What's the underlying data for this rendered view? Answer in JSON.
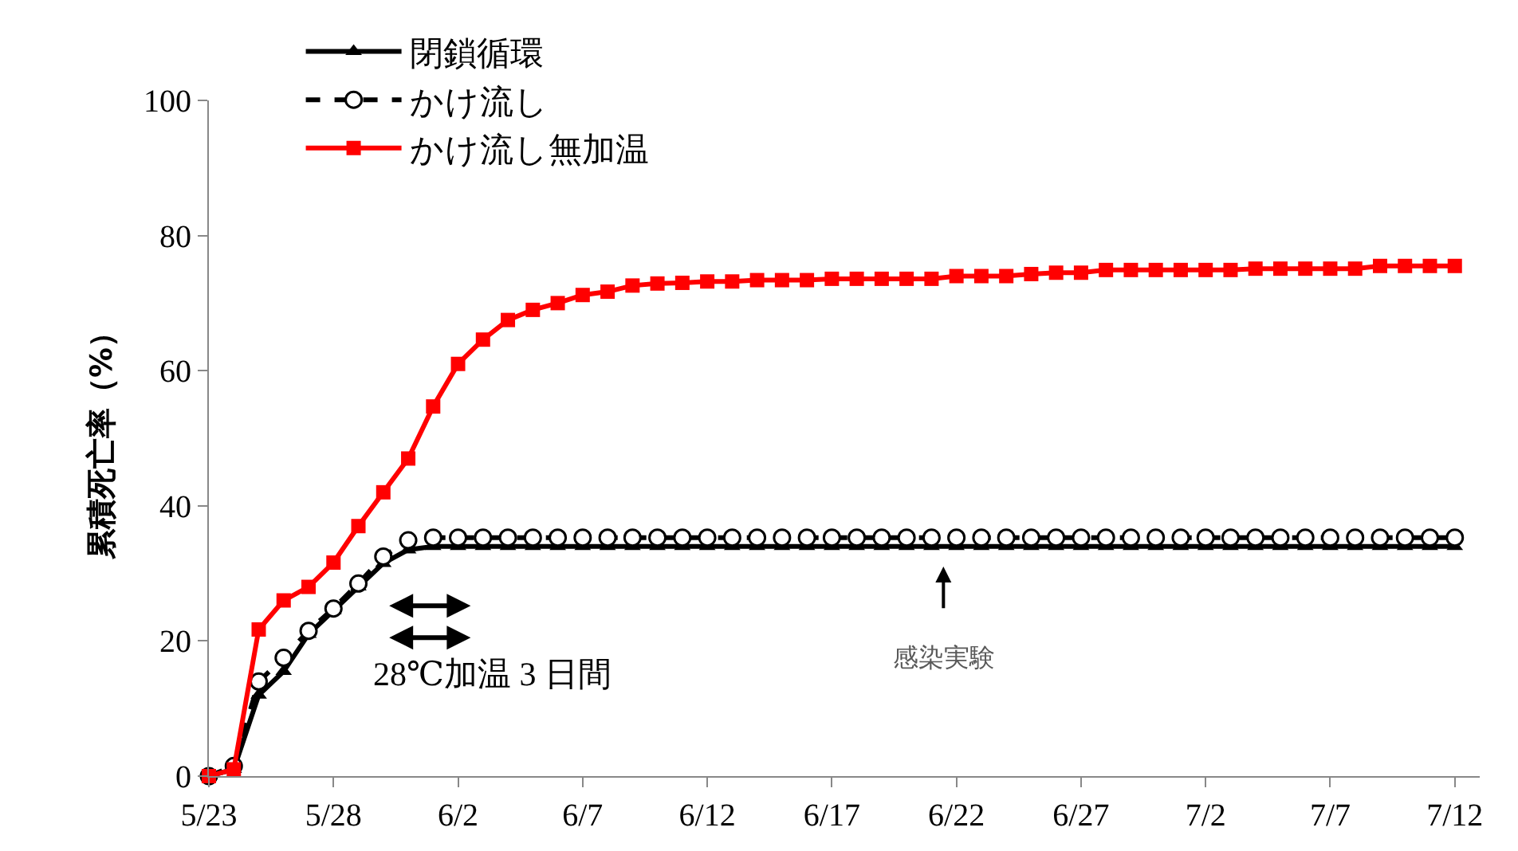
{
  "chart_data": {
    "type": "line",
    "ylabel": "累積死亡率（%）",
    "x": [
      "--05-23",
      "--05-24",
      "--05-25",
      "--05-26",
      "--05-27",
      "--05-28",
      "--05-29",
      "--05-30",
      "--05-31",
      "--06-01",
      "--06-02",
      "--06-03",
      "--06-04",
      "--06-05",
      "--06-06",
      "--06-07",
      "--06-08",
      "--06-09",
      "--06-10",
      "--06-11",
      "--06-12",
      "--06-13",
      "--06-14",
      "--06-15",
      "--06-16",
      "--06-17",
      "--06-18",
      "--06-19",
      "--06-20",
      "--06-21",
      "--06-22",
      "--06-23",
      "--06-24",
      "--06-25",
      "--06-26",
      "--06-27",
      "--06-28",
      "--06-29",
      "--06-30",
      "--07-01",
      "--07-02",
      "--07-03",
      "--07-04",
      "--07-05",
      "--07-06",
      "--07-07",
      "--07-08",
      "--07-09",
      "--07-10",
      "--07-11",
      "--07-12"
    ],
    "series": [
      {
        "name": "閉鎖循環",
        "color": "#000000",
        "marker": "triangle",
        "line_style": "solid",
        "values": [
          0,
          1,
          12,
          15.5,
          21,
          24.5,
          28,
          31.5,
          33.5,
          34,
          34,
          34,
          34,
          34,
          34,
          34,
          34,
          34,
          34,
          34,
          34,
          34,
          34,
          34,
          34,
          34,
          34,
          34,
          34,
          34,
          34,
          34,
          34,
          34,
          34,
          34,
          34,
          34,
          34,
          34,
          34,
          34,
          34,
          34,
          34,
          34,
          34,
          34,
          34,
          34,
          34
        ]
      },
      {
        "name": "かけ流し",
        "color": "#000000",
        "marker": "circle",
        "line_style": "dashed",
        "values": [
          0,
          1.5,
          14,
          17.5,
          21.5,
          24.8,
          28.5,
          32.5,
          34.9,
          35.3,
          35.3,
          35.3,
          35.3,
          35.3,
          35.3,
          35.3,
          35.3,
          35.3,
          35.3,
          35.3,
          35.3,
          35.3,
          35.3,
          35.3,
          35.3,
          35.3,
          35.3,
          35.3,
          35.3,
          35.3,
          35.3,
          35.3,
          35.3,
          35.3,
          35.3,
          35.3,
          35.3,
          35.3,
          35.3,
          35.3,
          35.3,
          35.3,
          35.3,
          35.3,
          35.3,
          35.3,
          35.3,
          35.3,
          35.3,
          35.3,
          35.3
        ]
      },
      {
        "name": "かけ流し無加温",
        "color": "#ff0000",
        "marker": "square",
        "line_style": "solid",
        "values": [
          0,
          1,
          21.7,
          26,
          28,
          31.6,
          37,
          42,
          47,
          54.7,
          61,
          64.6,
          67.5,
          69,
          70,
          71.2,
          71.7,
          72.6,
          72.9,
          73.0,
          73.2,
          73.2,
          73.4,
          73.4,
          73.4,
          73.6,
          73.6,
          73.6,
          73.6,
          73.6,
          74.0,
          74.0,
          74.0,
          74.3,
          74.5,
          74.5,
          74.9,
          74.9,
          74.9,
          74.9,
          74.9,
          74.9,
          75.1,
          75.1,
          75.1,
          75.1,
          75.1,
          75.5,
          75.5,
          75.5,
          75.5
        ]
      }
    ],
    "xlim": [
      "--05-23",
      "--07-13"
    ],
    "xticks": [
      {
        "value": "--05-23",
        "label": "5/23"
      },
      {
        "value": "--05-28",
        "label": "5/28"
      },
      {
        "value": "--06-02",
        "label": "6/2"
      },
      {
        "value": "--06-07",
        "label": "6/7"
      },
      {
        "value": "--06-12",
        "label": "6/12"
      },
      {
        "value": "--06-17",
        "label": "6/17"
      },
      {
        "value": "--06-22",
        "label": "6/22"
      },
      {
        "value": "--06-27",
        "label": "6/27"
      },
      {
        "value": "--07-02",
        "label": "7/2"
      },
      {
        "value": "--07-07",
        "label": "7/7"
      },
      {
        "value": "--07-12",
        "label": "7/12"
      }
    ],
    "ylim": [
      0,
      100
    ],
    "yticks": [
      0,
      20,
      40,
      60,
      80,
      100
    ],
    "legend": "top left",
    "annotations": [
      "28℃加温 3 日間",
      "感染実験"
    ]
  }
}
